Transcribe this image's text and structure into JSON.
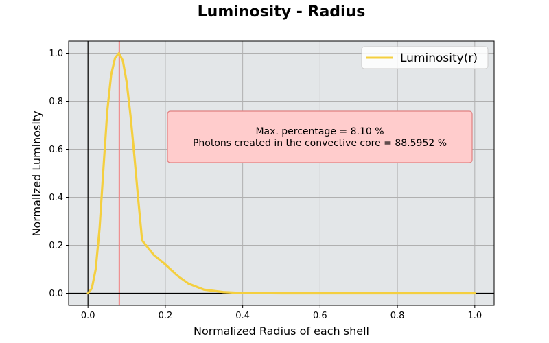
{
  "chart_data": {
    "type": "line",
    "title": "Luminosity - Radius",
    "xlabel": "Normalized Radius of each shell",
    "ylabel": "Normalized Luminosity",
    "xlim": [
      -0.05,
      1.05
    ],
    "ylim": [
      -0.05,
      1.05
    ],
    "xticks": [
      "0.0",
      "0.2",
      "0.4",
      "0.6",
      "0.8",
      "1.0"
    ],
    "yticks": [
      "0.0",
      "0.2",
      "0.4",
      "0.6",
      "0.8",
      "1.0"
    ],
    "grid": true,
    "legend_position": "top-right",
    "background_color": "#e3e6e8",
    "series": [
      {
        "name": "Luminosity(r)",
        "color": "#f4cf3f",
        "x": [
          0.0,
          0.01,
          0.02,
          0.03,
          0.04,
          0.05,
          0.06,
          0.07,
          0.08,
          0.09,
          0.1,
          0.11,
          0.12,
          0.13,
          0.14,
          0.15,
          0.17,
          0.2,
          0.23,
          0.26,
          0.3,
          0.35,
          0.4,
          0.5,
          0.6,
          0.7,
          0.8,
          0.9,
          1.0
        ],
        "y": [
          0.0,
          0.02,
          0.1,
          0.27,
          0.52,
          0.76,
          0.91,
          0.98,
          1.0,
          0.97,
          0.88,
          0.74,
          0.57,
          0.39,
          0.22,
          0.2,
          0.16,
          0.12,
          0.075,
          0.04,
          0.015,
          0.005,
          0.001,
          0.0,
          0.0,
          0.0,
          0.0,
          0.0,
          0.0
        ]
      }
    ],
    "reference_lines": [
      {
        "orientation": "vertical",
        "x": 0.081,
        "color": "#f08080"
      },
      {
        "orientation": "vertical",
        "x": 0.0,
        "color": "#000000"
      },
      {
        "orientation": "horizontal",
        "y": 0.0,
        "color": "#000000"
      }
    ],
    "annotation": {
      "lines": [
        "Max. percentage = 8.10 %",
        "Photons created in the convective core = 88.5952 %"
      ],
      "box_color": "#ffcccc",
      "border_color": "#e08080"
    }
  }
}
